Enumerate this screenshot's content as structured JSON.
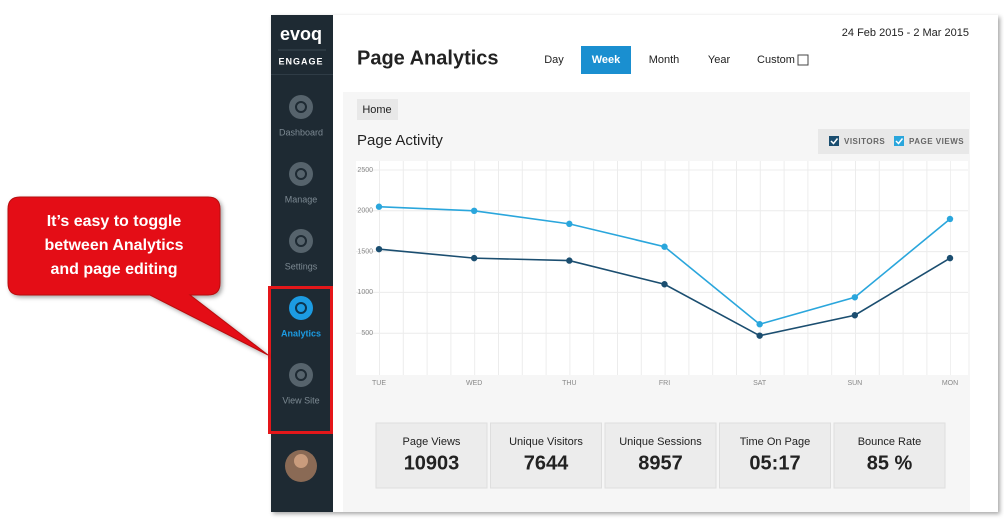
{
  "sidebar": {
    "logo": "evoq",
    "product": "ENGAGE",
    "items": [
      "Dashboard",
      "Manage",
      "Settings",
      "Analytics",
      "View Site"
    ],
    "active_item": 3
  },
  "header": {
    "title": "Page Analytics",
    "date_range": "24 Feb 2015 - 2 Mar 2015",
    "tabs": [
      "Day",
      "Week",
      "Month",
      "Year",
      "Custom"
    ],
    "active_tab": 1
  },
  "breadcrumb": "Home",
  "chart_data": {
    "type": "line",
    "title": "Page Activity",
    "categories": [
      "TUE",
      "WED",
      "THU",
      "FRI",
      "SAT",
      "SUN",
      "MON"
    ],
    "series": [
      {
        "name": "VISITORS",
        "color": "#1b4e70",
        "values": [
          1530,
          1420,
          1390,
          1100,
          470,
          720,
          1420
        ]
      },
      {
        "name": "PAGE VIEWS",
        "color": "#2aa6dc",
        "values": [
          2050,
          2000,
          1840,
          1560,
          610,
          940,
          1900
        ]
      }
    ],
    "ylim": [
      0,
      2500
    ],
    "yticks": [
      500,
      1000,
      1500,
      2000,
      2500
    ],
    "grid": true
  },
  "stats": [
    {
      "label": "Page Views",
      "value": 10903
    },
    {
      "label": "Unique Visitors",
      "value": 7644
    },
    {
      "label": "Unique Sessions",
      "value": 8957
    },
    {
      "label": "Time On Page",
      "value": "05:17"
    },
    {
      "label": "Bounce Rate",
      "value": "85 %"
    }
  ],
  "callout": [
    "It’s easy to toggle",
    "between Analytics",
    "and page editing"
  ]
}
